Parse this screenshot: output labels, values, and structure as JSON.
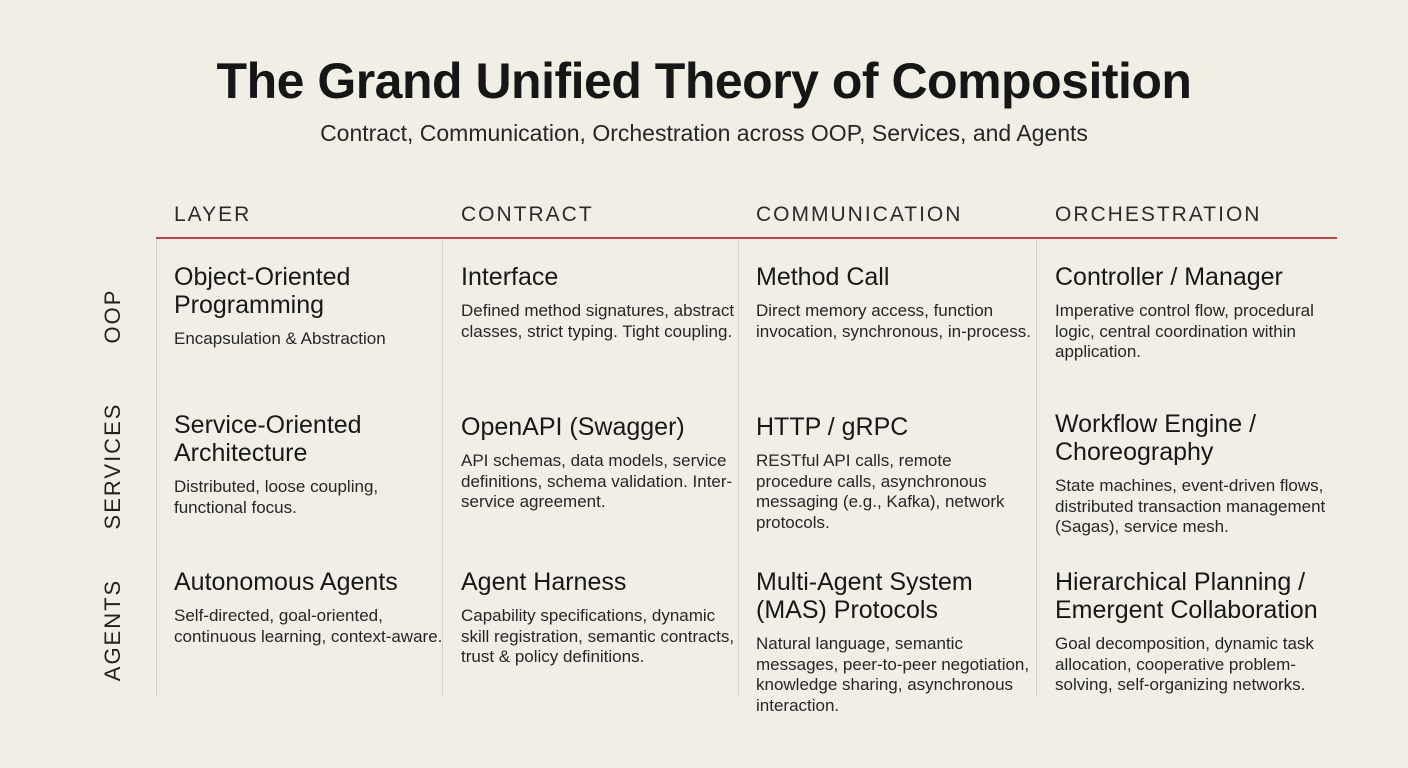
{
  "title": "The Grand Unified Theory of Composition",
  "subtitle": "Contract, Communication, Orchestration across OOP, Services, and Agents",
  "columns": [
    "LAYER",
    "CONTRACT",
    "COMMUNICATION",
    "ORCHESTRATION"
  ],
  "rows": [
    {
      "label": "OOP",
      "cells": [
        {
          "title": "Object-Oriented Programming",
          "desc": "Encapsulation & Abstraction"
        },
        {
          "title": "Interface",
          "desc": "Defined method signatures, abstract classes, strict typing. Tight coupling."
        },
        {
          "title": "Method Call",
          "desc": "Direct memory access, function invocation, synchronous, in-process."
        },
        {
          "title": "Controller / Manager",
          "desc": "Imperative control flow, procedural logic, central coordination within application."
        }
      ]
    },
    {
      "label": "SERVICES",
      "cells": [
        {
          "title": "Service-Oriented Architecture",
          "desc": "Distributed, loose coupling, functional focus."
        },
        {
          "title": "OpenAPI (Swagger)",
          "desc": "API schemas, data models, service definitions, schema validation. Inter-service agreement."
        },
        {
          "title": "HTTP / gRPC",
          "desc": "RESTful API calls, remote procedure calls, asynchronous messaging (e.g., Kafka), network protocols."
        },
        {
          "title": "Workflow Engine / Choreography",
          "desc": "State machines, event-driven flows, distributed transaction management (Sagas), service mesh."
        }
      ]
    },
    {
      "label": "AGENTS",
      "cells": [
        {
          "title": "Autonomous Agents",
          "desc": "Self-directed, goal-oriented, continuous learning, context-aware."
        },
        {
          "title": "Agent Harness",
          "desc": "Capability specifications, dynamic skill registration, semantic contracts, trust & policy definitions."
        },
        {
          "title": "Multi-Agent System (MAS) Protocols",
          "desc": "Natural language, semantic messages, peer-to-peer negotiation, knowledge sharing, asynchronous interaction."
        },
        {
          "title": "Hierarchical Planning / Emergent Collaboration",
          "desc": "Goal decomposition, dynamic task allocation, cooperative problem-solving, self-organizing networks."
        }
      ]
    }
  ]
}
